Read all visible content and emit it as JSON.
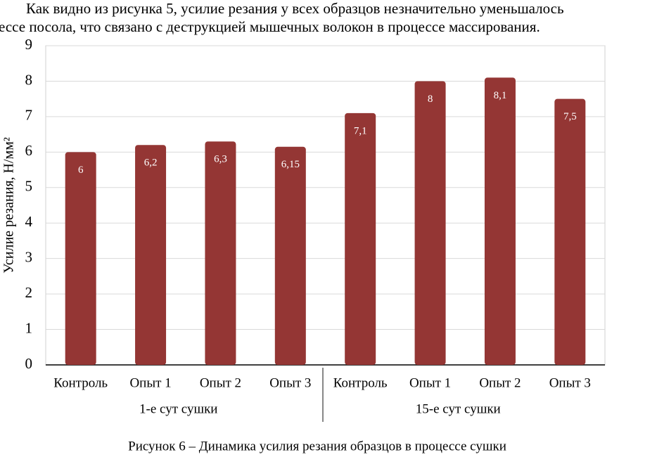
{
  "paragraph_lines": [
    "Как видно из рисунка 5, усилие резания у всех образцов незначительно уменьшалось",
    "ессе посола, что связано с деструкцией мышечных волокон в процессе массирования."
  ],
  "chart_data": {
    "type": "bar",
    "y_label": "Усилие резания, Н/мм²",
    "categories": [
      "Контроль",
      "Опыт 1",
      "Опыт 2",
      "Опыт 3",
      "Контроль",
      "Опыт 1",
      "Опыт 2",
      "Опыт 3"
    ],
    "groups": [
      "1-е сут сушки",
      "15-е сут сушки"
    ],
    "values": [
      6,
      6.2,
      6.3,
      6.15,
      7.1,
      8,
      8.1,
      7.5
    ],
    "value_labels": [
      "6",
      "6,2",
      "6,3",
      "6,15",
      "7,1",
      "8",
      "8,1",
      "7,5"
    ],
    "color": "#943634",
    "ylim": [
      0,
      9
    ],
    "yticks": [
      0,
      1,
      2,
      3,
      4,
      5,
      6,
      7,
      8,
      9
    ],
    "grid": true
  },
  "caption": "Рисунок 6 – Динамика усилия резания образцов в процессе сушки"
}
